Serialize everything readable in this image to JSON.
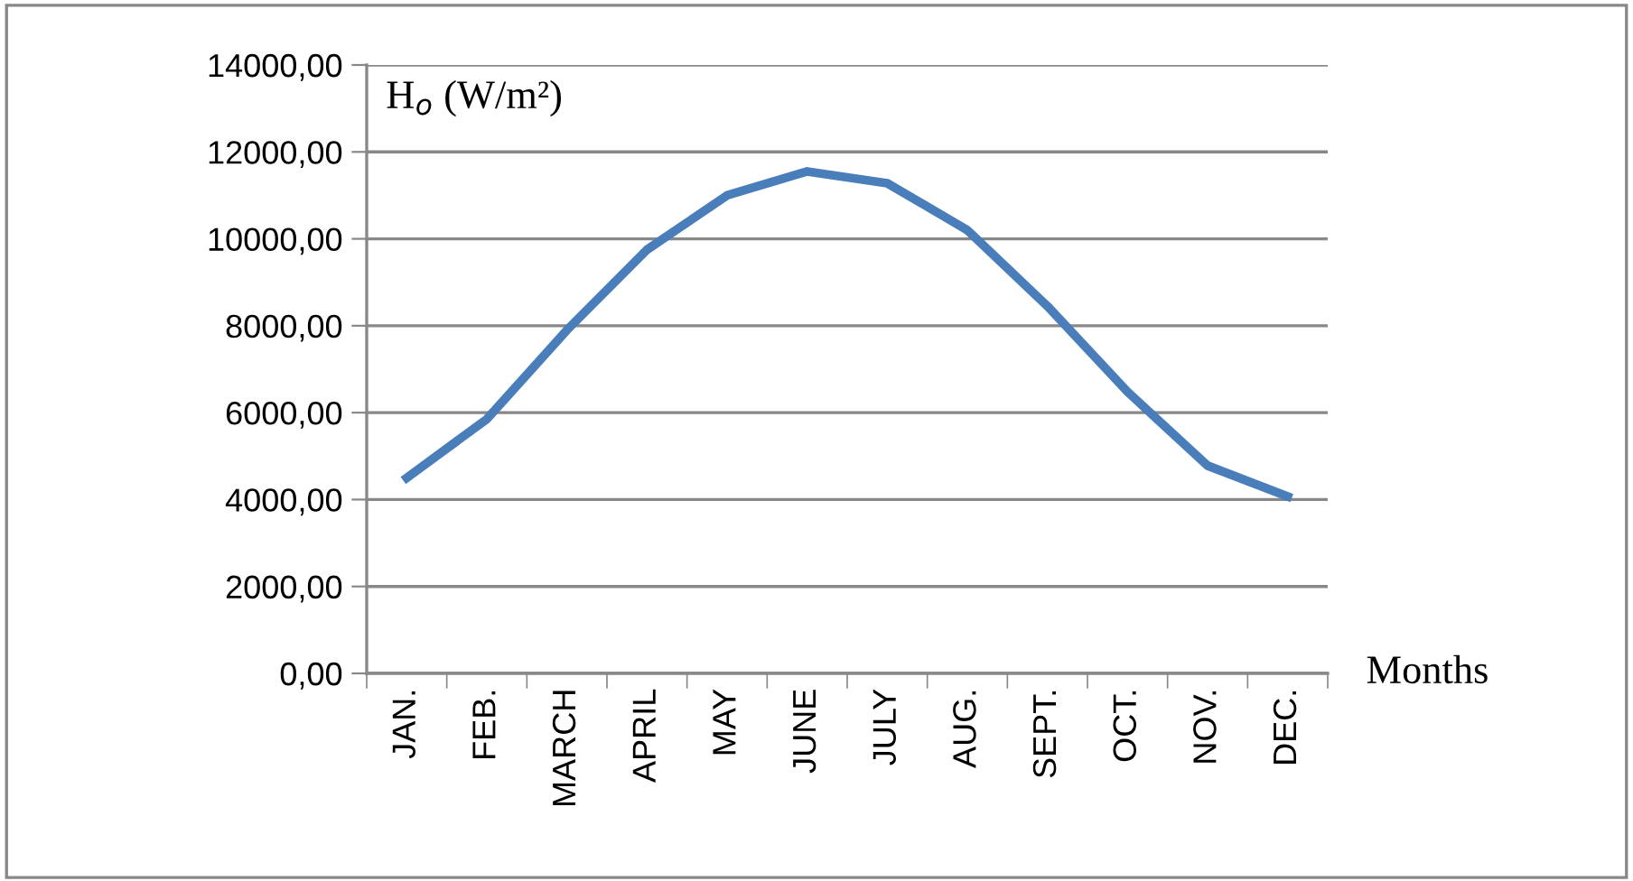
{
  "chart_data": {
    "type": "line",
    "ylabel": "H$_{o}$ (W/m²)",
    "xlabel": "Months",
    "categories": [
      "JAN.",
      "FEB.",
      "MARCH",
      "APRIL",
      "MAY",
      "JUNE",
      "JULY",
      "AUG.",
      "SEPT.",
      "OCT.",
      "NOV.",
      "DEC."
    ],
    "series": [
      {
        "color": "#4a7ebb",
        "values": [
          4500,
          5850,
          7900,
          9750,
          11000,
          11550,
          11280,
          10200,
          8450,
          6480,
          4780,
          4070
        ]
      }
    ],
    "ylim": [
      0,
      14000
    ],
    "yticks": [
      {
        "value": 0,
        "label": "0,00"
      },
      {
        "value": 2000,
        "label": "2000,00"
      },
      {
        "value": 4000,
        "label": "4000,00"
      },
      {
        "value": 6000,
        "label": "6000,00"
      },
      {
        "value": 8000,
        "label": "8000,00"
      },
      {
        "value": 10000,
        "label": "10000,00"
      },
      {
        "value": 12000,
        "label": "12000,00"
      },
      {
        "value": 14000,
        "label": "14000,00"
      }
    ],
    "grid": "y",
    "legend": false,
    "marker": "none",
    "line_style": "solid"
  }
}
